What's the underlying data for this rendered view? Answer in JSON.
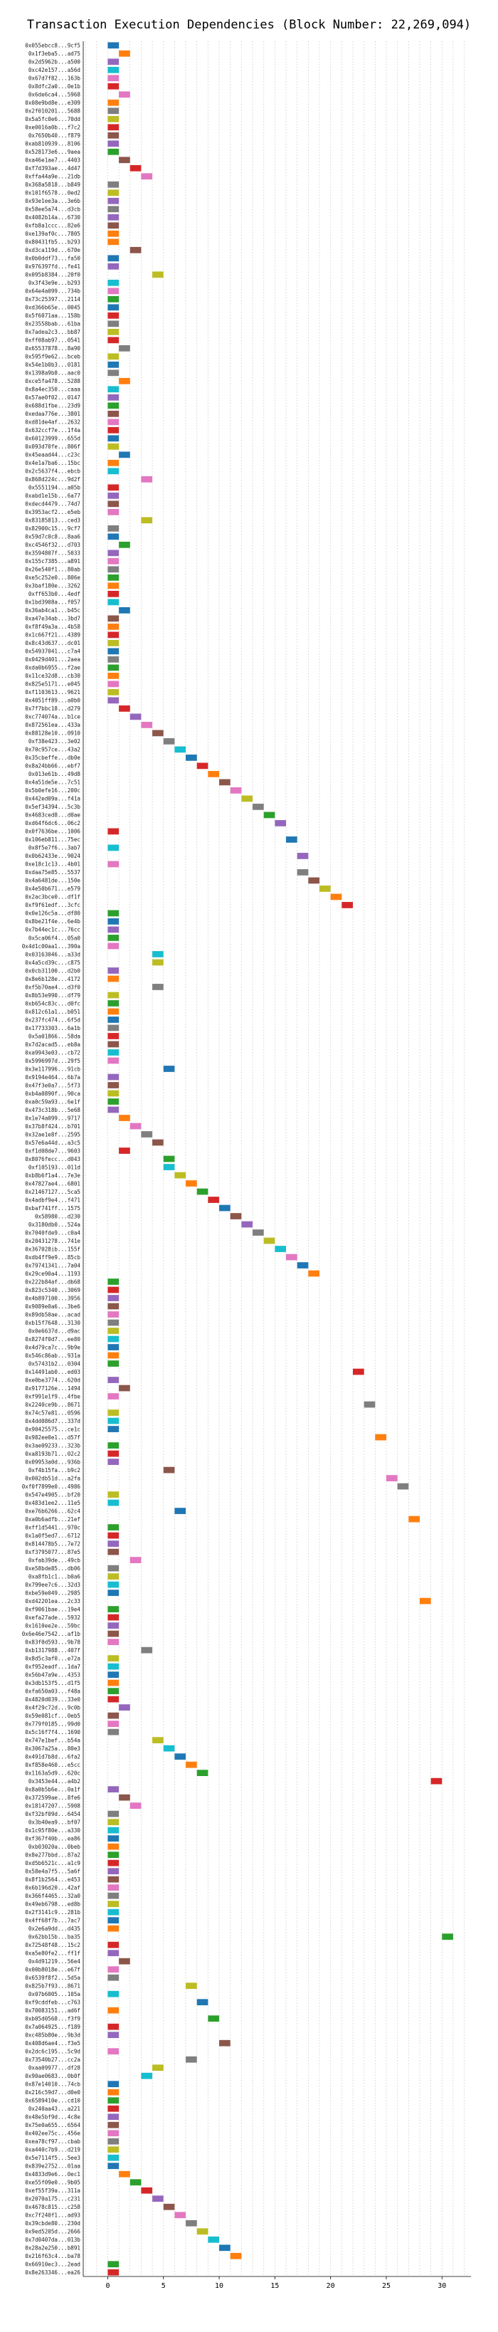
{
  "chart_data": {
    "type": "bar",
    "subtype": "horizontal-gantt",
    "title": "Transaction Execution Dependencies (Block Number: 22,269,094)",
    "xlabel": "",
    "ylabel": "",
    "xlim": [
      -2.2,
      32.6
    ],
    "xticks": [
      0,
      5,
      10,
      15,
      20,
      25,
      30
    ],
    "grid": "vertical dotted",
    "bar_span": 1,
    "palette": [
      "#1f77b4",
      "#ff7f0e",
      "#2ca02c",
      "#d62728",
      "#9467bd",
      "#8c564b",
      "#e377c2",
      "#7f7f7f",
      "#bcbd22",
      "#17becf"
    ],
    "hashes": [
      "0x055ebcc8...9cf5",
      "0x1f3eba5...ad75",
      "0x2d5962b...a500",
      "0xc42e157...a56d",
      "0x67d7f82...163b",
      "0x8dfc2a0...0e1b",
      "0x6de6ca4...5968",
      "0x08e9bd8e...e309",
      "0x2f010201...5688",
      "0x5a5fc0e6...70dd",
      "0xe0016a0b...f7c2",
      "0x7650b40...f879",
      "0xab810939...8106",
      "0x528173e6...9aea",
      "0xa46e1ae7...4403",
      "0xf7d393ae...4d47",
      "0xffa44a9e...21db",
      "0x368a5818...b849",
      "0x101f6578...0ed2",
      "0x93e1ee3a...3e6b",
      "0x58ee5a74...d3cb",
      "0x4082b14a...6730",
      "0xfb8a1ccc...82e6",
      "0xe139af0c...7805",
      "0x80431fb5...b293",
      "0xd3ca119d...670e",
      "0x0b0ddf73...fa50",
      "0x976397fd...fe41",
      "0x095b8384...20f0",
      "0x3f43e9e...b293",
      "0x64e4a099...734b",
      "0x73c25397...2114",
      "0xd366b65e...0045",
      "0x5f6071aa...158b",
      "0x23558bab...61ba",
      "0x7adea2c3...bb87",
      "0xff08ab97...0541",
      "0x65537878...8a90",
      "0x595f9e62...bceb",
      "0x54e1b0b3...0181",
      "0x1398a9b8...aac0",
      "0xce5fa478...5288",
      "0x8a4ec350...caaa",
      "0x57ae0f02...0147",
      "0x688d1fbe...23d9",
      "0xedaa776e...3801",
      "0xd81de4af...2632",
      "0x632ccf7e...1f4a",
      "0x60123999...655d",
      "0x093d70fe...806f",
      "0x45eaad44...c23c",
      "0x4e1a7ba6...15bc",
      "0x2c5637f4...ebcb",
      "0x868d224c...9d2f",
      "0x5551194...a05b",
      "0xabd1e15b...6a77",
      "0xdecd4479...74d7",
      "0x3953acf2...e5eb",
      "0x83185813...ced3",
      "0x82900c15...9cf7",
      "0x59d7c0c8...8aa6",
      "0xc4546f32...d703",
      "0x3594807f...5033",
      "0x155c7385...a891",
      "0x26e540f1...80ab",
      "0xe5c252e0...806e",
      "0x3baf180e...3262",
      "0xff653b0...4edf",
      "0x1bd3908a...f057",
      "0x36ab4ca1...b45c",
      "0xa47e34ab...3bd7",
      "0xf8f49a3a...4b58",
      "0x1c667f21...4389",
      "0x8c43d637...dc01",
      "0x54937041...c7a4",
      "0x0429d401...2aea",
      "0xda0b6955...f2ae",
      "0x11ce32d8...cb30",
      "0x825e5171...e045",
      "0xf1103613...9621",
      "0x4051ff89...a0b0",
      "0x7f7bbc18...d279",
      "0xc774074a...b1ce",
      "0x872561ea...433a",
      "0x88128e10...0910",
      "0xf38e423...3e02",
      "0x70c957ce...43a2",
      "0x35cbeffe...db0e",
      "0x8a24bb66...ebf7",
      "0x013e61b...49d8",
      "0x4a51de5e...7c51",
      "0x5b0efe16...200c",
      "0x442ed09a...f41a",
      "0x5ef34394...5c3b",
      "0x4683ced8...d0ae",
      "0xd64f6dc6...06c2",
      "0x0f7636be...1006",
      "0x106eb811...75ec",
      "0x8f5e7f6...3ab7",
      "0x0b62433e...9024",
      "0xe18c1c13...4b01",
      "0xdaa75e85...5537",
      "0x4a6481de...150e",
      "0x4e50b671...e579",
      "0x2ac3bce0...df1f",
      "0xf9f61edf...3cfc",
      "0x0e126c5a...df80",
      "0x8be21f4e...6e4b",
      "0x7b44ec1c...76cc",
      "0x5ca06f4...05a0",
      "0x4d1c00aa1...390a",
      "0x03163046...a33d",
      "0x4a5cd39c...c875",
      "0x0cb31100...d2b0",
      "0x8e6b128e...4172",
      "0xf5b70ae4...d3f0",
      "0x8b53e990...df79",
      "0xb654c83c...d0fc",
      "0x812c61a1...b051",
      "0x237fc474...6f5d",
      "0x17733303...6a1b",
      "0x5a01866...58da",
      "0x7d2acad5...eb8a",
      "0xa9943e03...cb72",
      "0x5996997d...29f5",
      "0x3e117996...91cb",
      "0x9194e464...6b7a",
      "0x47f3e0a7...5f73",
      "0xb4a0890f...90ca",
      "0xa0c59a93...6e1f",
      "0x473c318b...5e68",
      "0x1e74a099...9717",
      "0x37b8f424...b701",
      "0x32ae1e8f...2595",
      "0x57e6a44d...a3c5",
      "0xf1d08de7...9603",
      "0x8076fecc...d043",
      "0xf105193...011d",
      "0xb8b6f1a4...7e3e",
      "0x47827ae4...6801",
      "0x21467127...5ca5",
      "0x4adbf9e4...f471",
      "0xbaf741ff...1575",
      "0x58980...d230",
      "0x3180db0...524a",
      "0x7040fde9...c0a4",
      "0x20431278...741e",
      "0x367028ib...155f",
      "0xdb4ff9e9...85cb",
      "0x79741341...7a04",
      "0x29ce90a4...1193",
      "0x222b84af...db68",
      "0x823c5340...3069",
      "0x4b897100...3956",
      "0x9089e0a6...3be6",
      "0x89db50ae...acad",
      "0xb15f7648...3130",
      "0x0e6637d...d9ac",
      "0x8274f0d7...ee80",
      "0x4d79ca7c...9b9e",
      "0x546c86ab...931a",
      "0x57431b2...0304",
      "0x14491ab0...ed03",
      "0xe0be3774...620d",
      "0x9177126e...1494",
      "0xf991e1f9...4fbe",
      "0x2240ce9b...8671",
      "0x74c57e81...0596",
      "0x4dd086d7...337d",
      "0x90425575...ce1c",
      "0x982ee0e1...d57f",
      "0x3ae09233...323b",
      "0xa8193b71...02c2",
      "0x09953a0d...936b",
      "0xf4b15fa...b9c2",
      "0x002db51d...a2fa",
      "0xf0f7899e0...4986",
      "0x547e4905...bf20",
      "0x483d1ee2...11e5",
      "0xe76b6266...62c4",
      "0xa0b6adfb...21ef",
      "0xff1d5441...970c",
      "0x1a0f5ed7...6712",
      "0x814478b5...7e72",
      "0xf3795077...87e5",
      "0xfab39de...49cb",
      "0xe58bde85...db06",
      "0xa8fb1c1...b0a6",
      "0x799ee7c6...32d3",
      "0xbe59e049...2985",
      "0xd42201ea...2c33",
      "0xf9061bae...19e4",
      "0xefa27ade...5932",
      "0x1610ee2e...59bc",
      "0x6e46e7542...af1b",
      "0x83f0d593...9b78",
      "0xb1317988...407f",
      "0x8d5c3af0...e72a",
      "0xf952eadf...1da7",
      "0x56b47a9e...4353",
      "0x3db153f5...d1f5",
      "0xfa650a03...f48a",
      "0x4820d039...33e0",
      "0x4f29c72d...9c0b",
      "0x59e081cf...0eb5",
      "0x779f0185...99d0",
      "0x5c16f7f4...1690",
      "0x747e1bef...b54a",
      "0x3067a25a...80e3",
      "0x491d7b8d...6fa2",
      "0xf858e460...e5cc",
      "0x1163a5d9...620c",
      "0x3453e44...a4b2",
      "0x8a0b5b6e...0a1f",
      "0x372599ae...8fe6",
      "0x18147207...5908",
      "0xf32bf09d...6454",
      "0x3b40ea9...bf07",
      "0x1c95f80e...a330",
      "0xf367f40b...ea86",
      "0xb03020a...0beb",
      "0x8e277bbd...87a2",
      "0xd5b6521c...a1c9",
      "0x58e4a7f5...5a6f",
      "0x8f1b2564...e453",
      "0x6b196d20...42af",
      "0x366f4465...32a0",
      "0x49eb6798...ed8b",
      "0x2f3141c9...281b",
      "0x4ff68f7b...7ac7",
      "0x2e6a9dd...d435",
      "0x62bb15b...ba35",
      "0x72548f48...15c2",
      "0xa5e80fe2...ff1f",
      "0x4d91219...56e4",
      "0x00b8018e...e67f",
      "0x6539f8f2...5d5a",
      "0x825b7f93...8671",
      "0x07b6005...105a",
      "0xf9cddfeb...c763",
      "0x70083151...ad6f",
      "0xb05d0568...f3f9",
      "0x7a064925...f189",
      "0xc485b80e...9b3d",
      "0x408d6ae4...f3e5",
      "0x2dc6c195...5c9d",
      "0x73540b27...cc2a",
      "0xaa09977...df28",
      "0x90ae0683...0b0f",
      "0x87e14010...74cb",
      "0x216c59d7...d0e0",
      "0x6589410e...cd10",
      "0x240aa43...a221",
      "0x48e5bf9d...4c8e",
      "0x75e0a655...6564",
      "0x402ee75c...456e",
      "0xea78cf97...cbab",
      "0xa440c7b9...d219",
      "0x5e7114f5...5ee3",
      "0x839e2752...01aa",
      "0x4833d9e6...0ec1",
      "0xe55f09e0...9b05",
      "0xef55f39a...311a",
      "0x2070a175...c231",
      "0x4678c815...c258",
      "0xc7f240f1...ad93",
      "0x39cbde80...230d",
      "0x9ed5205d...2666",
      "0x7d0407da...013b",
      "0x28a2e250...b891",
      "0x216f63c4...ba78",
      "0x66910ec3...2ead",
      "0x8e263346...ea26"
    ],
    "starts": [
      0,
      1,
      0,
      0,
      0,
      0,
      1,
      0,
      0,
      0,
      0,
      0,
      0,
      0,
      1,
      2,
      3,
      0,
      0,
      0,
      0,
      0,
      0,
      0,
      0,
      2,
      0,
      0,
      4,
      0,
      0,
      0,
      0,
      0,
      0,
      0,
      0,
      1,
      0,
      0,
      0,
      1,
      0,
      0,
      0,
      0,
      0,
      0,
      0,
      0,
      1,
      0,
      0,
      3,
      0,
      0,
      0,
      0,
      3,
      0,
      0,
      1,
      0,
      0,
      0,
      0,
      0,
      0,
      0,
      1,
      0,
      0,
      0,
      0,
      0,
      0,
      0,
      0,
      0,
      0,
      0,
      1,
      2,
      3,
      4,
      5,
      6,
      7,
      8,
      9,
      10,
      11,
      12,
      13,
      14,
      15,
      0,
      16,
      0,
      17,
      0,
      17,
      18,
      19,
      20,
      21,
      0,
      0,
      0,
      0,
      0,
      4,
      4,
      0,
      0,
      4,
      0,
      0,
      0,
      0,
      0,
      0,
      0,
      0,
      0,
      5,
      0,
      0,
      0,
      0,
      0,
      1,
      2,
      3,
      4,
      1,
      5,
      5,
      6,
      7,
      8,
      9,
      10,
      11,
      12,
      13,
      14,
      15,
      16,
      17,
      18,
      0,
      0,
      0,
      0,
      0,
      0,
      0,
      0,
      0,
      0,
      0,
      22,
      0,
      1,
      0,
      23,
      0,
      0,
      0,
      24,
      0,
      0,
      0,
      5,
      25,
      26,
      0,
      0,
      6,
      27,
      0,
      0,
      0,
      0,
      2,
      0,
      0,
      0,
      0,
      28,
      0,
      0,
      0,
      0,
      0,
      3,
      0,
      0,
      0,
      0,
      0,
      0,
      1,
      0,
      0,
      0,
      4,
      5,
      6,
      7,
      8,
      29,
      0,
      1,
      2,
      0,
      0,
      0,
      0,
      0,
      0,
      0,
      0,
      0,
      0,
      0,
      0,
      0,
      0,
      0,
      30,
      0,
      0,
      1,
      0,
      0,
      7,
      0,
      8,
      0,
      9,
      0,
      0,
      10,
      0,
      7,
      4,
      3,
      0,
      0,
      0,
      0,
      0,
      0,
      0,
      0,
      0,
      0,
      0,
      1,
      2,
      3,
      4,
      5,
      6,
      7,
      8,
      9,
      10,
      11,
      0,
      0,
      0,
      0,
      0,
      0,
      0,
      0,
      0,
      0,
      0,
      0,
      0,
      0,
      0,
      0,
      0,
      0,
      0,
      0,
      0,
      0,
      0
    ],
    "colors": [
      0,
      1,
      4,
      9,
      6,
      3,
      6,
      1,
      7,
      8,
      3,
      5,
      4,
      2,
      5,
      3,
      6,
      7,
      8,
      4,
      7,
      4,
      5,
      1,
      1,
      5,
      0,
      4,
      8,
      9,
      6,
      2,
      0,
      3,
      7,
      8,
      3,
      7,
      8,
      0,
      7,
      1,
      9,
      4,
      2,
      5,
      6,
      3,
      0,
      8,
      0,
      1,
      9,
      6,
      3,
      4,
      5,
      6,
      8,
      7,
      0,
      2,
      4,
      6,
      7,
      2,
      1,
      3,
      9,
      0,
      5,
      1,
      3,
      8,
      0,
      7,
      2,
      1,
      6,
      8,
      4,
      3,
      4,
      6,
      5,
      7,
      9,
      0,
      3,
      1,
      5,
      6,
      8,
      7,
      2,
      4,
      3,
      0,
      9,
      4,
      6,
      7,
      5,
      8,
      1,
      3,
      2,
      0,
      4,
      2,
      6,
      9,
      8,
      4,
      1,
      7,
      8,
      2,
      1,
      0,
      7,
      3,
      5,
      9,
      6,
      0,
      4,
      5,
      8,
      2,
      4,
      1,
      6,
      7,
      5,
      3,
      2,
      9,
      8,
      1,
      2,
      3,
      0,
      5,
      4,
      7,
      8,
      9,
      6,
      0,
      1,
      2,
      3,
      4,
      5,
      6,
      7,
      8,
      9,
      0,
      1,
      2,
      3,
      4,
      5,
      6,
      7,
      8,
      9,
      0,
      1,
      2,
      3,
      4,
      5,
      6,
      7,
      8,
      9,
      0,
      1,
      2,
      3,
      4,
      5,
      6,
      7,
      8,
      9,
      0,
      1,
      2,
      3,
      4,
      5,
      6,
      7,
      8,
      9,
      0,
      1,
      2,
      3,
      4,
      5,
      6,
      7,
      8,
      9,
      0,
      1,
      2,
      3,
      4,
      5,
      6,
      7,
      8,
      9,
      0,
      1,
      2,
      3,
      4,
      5,
      6,
      7,
      8,
      9,
      0,
      1,
      2,
      3,
      4,
      5,
      6,
      7,
      8,
      9,
      0,
      1,
      2,
      3,
      4,
      5,
      6,
      7,
      8,
      9,
      0,
      1,
      2,
      3,
      4,
      5,
      6,
      7,
      8,
      9,
      0,
      1,
      2,
      3,
      4,
      5,
      6,
      7,
      8,
      9,
      0,
      1,
      2,
      3,
      4,
      5
    ]
  }
}
